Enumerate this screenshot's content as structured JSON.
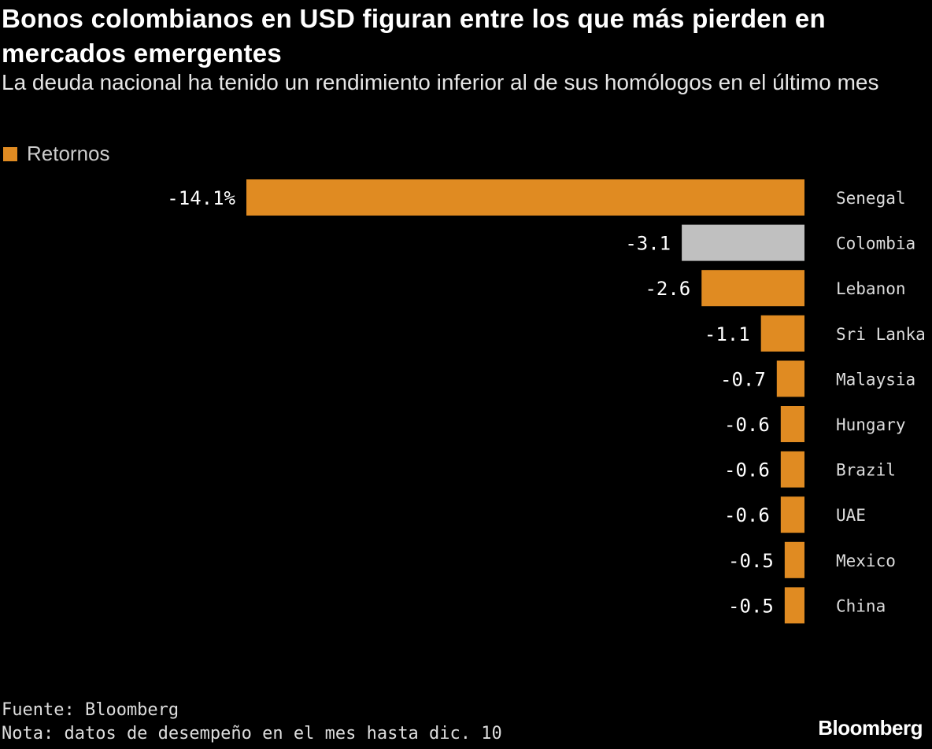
{
  "chart_data": {
    "type": "bar",
    "orientation": "horizontal",
    "title": "Bonos colombianos en USD figuran entre los que más pierden en mercados emergentes",
    "subtitle": "La deuda nacional ha tenido un rendimiento inferior al de sus homólogos en el último mes",
    "legend": {
      "label": "Retornos",
      "placement": "top-left"
    },
    "categories": [
      "Senegal",
      "Colombia",
      "Lebanon",
      "Sri Lanka",
      "Malaysia",
      "Hungary",
      "Brazil",
      "UAE",
      "Mexico",
      "China"
    ],
    "values": [
      -14.1,
      -3.1,
      -2.6,
      -1.1,
      -0.7,
      -0.6,
      -0.6,
      -0.6,
      -0.5,
      -0.5
    ],
    "value_labels": [
      "-14.1%",
      "-3.1",
      "-2.6",
      "-1.1",
      "-0.7",
      "-0.6",
      "-0.6",
      "-0.6",
      "-0.5",
      "-0.5"
    ],
    "highlight": "Colombia",
    "colors": {
      "bar": "#e08b22",
      "highlight": "#c0c0c0",
      "background": "#000000"
    },
    "grid": false,
    "unit": "%"
  },
  "footer": {
    "source": "Fuente: Bloomberg",
    "note": "Nota: datos de desempeño en el mes hasta dic. 10",
    "logo": "Bloomberg"
  }
}
